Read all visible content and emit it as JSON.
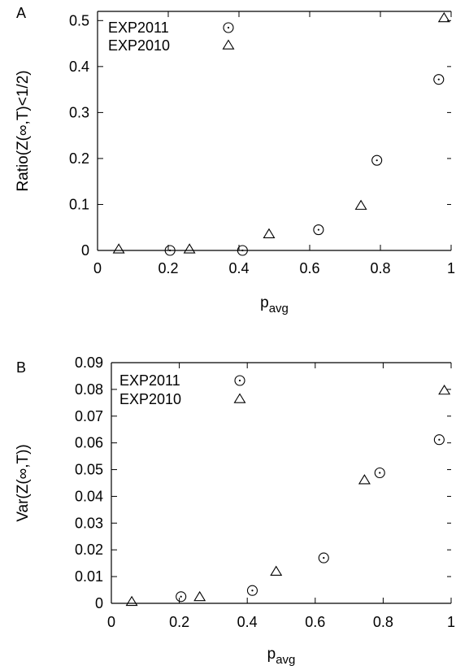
{
  "chart_data": [
    {
      "type": "scatter",
      "panel_label": "A",
      "xlabel": "p",
      "xlabel_sub": "avg",
      "ylabel": "Ratio(Z(∞,T)<1/2)",
      "xlim": [
        0,
        1
      ],
      "ylim": [
        0,
        0.52
      ],
      "xticks": [
        0,
        0.2,
        0.4,
        0.6,
        0.8,
        1
      ],
      "xtick_labels": [
        "0",
        "0.2",
        "0.4",
        "0.6",
        "0.8",
        "1"
      ],
      "yticks": [
        0,
        0.1,
        0.2,
        0.3,
        0.4,
        0.5
      ],
      "ytick_labels": [
        "0",
        "0.1",
        "0.2",
        "0.3",
        "0.4",
        "0.5"
      ],
      "grid": false,
      "legend_position": "top-left",
      "series": [
        {
          "name": "EXP2011",
          "marker": "circle-dot",
          "x": [
            0.205,
            0.41,
            0.625,
            0.79,
            0.965
          ],
          "y": [
            0.0,
            0.0,
            0.045,
            0.196,
            0.372
          ]
        },
        {
          "name": "EXP2010",
          "marker": "triangle",
          "x": [
            0.06,
            0.26,
            0.485,
            0.745,
            0.98
          ],
          "y": [
            0.002,
            0.002,
            0.035,
            0.097,
            0.505
          ]
        }
      ]
    },
    {
      "type": "scatter",
      "panel_label": "B",
      "xlabel": "p",
      "xlabel_sub": "avg",
      "ylabel": "Var(Z(∞,T))",
      "xlim": [
        0,
        1
      ],
      "ylim": [
        0,
        0.09
      ],
      "xticks": [
        0,
        0.2,
        0.4,
        0.6,
        0.8,
        1
      ],
      "xtick_labels": [
        "0",
        "0.2",
        "0.4",
        "0.6",
        "0.8",
        "1"
      ],
      "yticks": [
        0,
        0.01,
        0.02,
        0.03,
        0.04,
        0.05,
        0.06,
        0.07,
        0.08,
        0.09
      ],
      "ytick_labels": [
        "0",
        "0.01",
        "0.02",
        "0.03",
        "0.04",
        "0.05",
        "0.06",
        "0.07",
        "0.08",
        "0.09"
      ],
      "grid": false,
      "legend_position": "top-left",
      "series": [
        {
          "name": "EXP2011",
          "marker": "circle-dot",
          "x": [
            0.205,
            0.415,
            0.625,
            0.79,
            0.965
          ],
          "y": [
            0.0025,
            0.0048,
            0.017,
            0.0488,
            0.0612
          ]
        },
        {
          "name": "EXP2010",
          "marker": "triangle",
          "x": [
            0.06,
            0.26,
            0.485,
            0.745,
            0.98
          ],
          "y": [
            0.0005,
            0.0023,
            0.0118,
            0.046,
            0.0795
          ]
        }
      ]
    }
  ]
}
